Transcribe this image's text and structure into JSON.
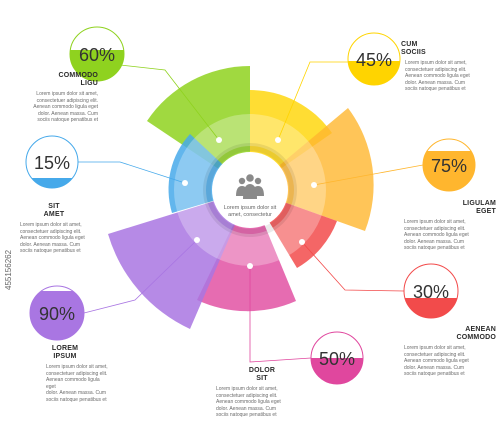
{
  "center_caption": [
    "Lorem ipsum dolor sit",
    "amet, consectetur"
  ],
  "body_lines": [
    "Lorem ipsum dolor sit amet,",
    "consectetuer adipiscing elit.",
    "Aenean commodo ligula eget",
    "dolor. Aenean massa. Cum",
    "sociis natoque penatibus et"
  ],
  "segments": [
    {
      "id": "commodo-ligu",
      "title": [
        "COMMODO",
        "LIGU"
      ],
      "percent": "60%",
      "color": "#8fd21f"
    },
    {
      "id": "cum-sociis",
      "title": [
        "CUM",
        "SOCIIS"
      ],
      "percent": "45%",
      "color": "#ffd400"
    },
    {
      "id": "ligulam-eget",
      "title": [
        "LIGULAM",
        "EGET"
      ],
      "percent": "75%",
      "color": "#ffb62e"
    },
    {
      "id": "aenean-commodo",
      "title": [
        "AENEAN",
        "COMMODO"
      ],
      "percent": "30%",
      "color": "#f24b4b"
    },
    {
      "id": "dolor-sit",
      "title": [
        "DOLOR",
        "SIT"
      ],
      "percent": "50%",
      "color": "#e0479e"
    },
    {
      "id": "lorem-ipsum",
      "title": [
        "LOREM",
        "IPSUM"
      ],
      "percent": "90%",
      "color": "#a976e2"
    },
    {
      "id": "sit-amet",
      "title": [
        "SIT",
        "AMET"
      ],
      "percent": "15%",
      "color": "#46a9ea"
    }
  ],
  "watermark": "455156262"
}
